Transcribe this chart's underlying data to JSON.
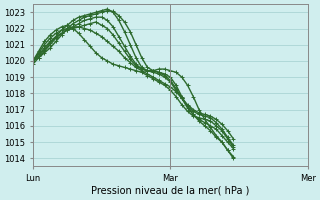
{
  "title": "",
  "xlabel": "Pression niveau de la mer( hPa )",
  "ylabel": "",
  "background_color": "#d0eeee",
  "grid_color": "#b0d8d8",
  "line_color": "#2d6a2d",
  "ylim": [
    1013.5,
    1023.5
  ],
  "yticks": [
    1014,
    1015,
    1016,
    1017,
    1018,
    1019,
    1020,
    1021,
    1022,
    1023
  ],
  "day_labels": [
    "Lun",
    "Mar",
    "Mer"
  ],
  "day_positions": [
    0,
    24,
    48
  ],
  "series": [
    [
      1020.0,
      1020.2,
      1020.5,
      1020.8,
      1021.2,
      1021.6,
      1022.0,
      1022.3,
      1022.5,
      1022.7,
      1022.8,
      1022.9,
      1023.0,
      1023.1,
      1023.05,
      1022.8,
      1022.4,
      1021.8,
      1021.0,
      1020.2,
      1019.6,
      1019.4,
      1019.5,
      1019.5,
      1019.4,
      1019.3,
      1019.0,
      1018.5,
      1017.8,
      1017.0,
      1016.4,
      1015.9,
      1015.4,
      1015.0,
      1014.5,
      1014.0
    ],
    [
      1020.0,
      1020.3,
      1020.7,
      1021.1,
      1021.5,
      1021.9,
      1022.2,
      1022.5,
      1022.7,
      1022.8,
      1022.9,
      1023.0,
      1023.1,
      1023.2,
      1023.0,
      1022.5,
      1021.8,
      1021.0,
      1020.2,
      1019.6,
      1019.4,
      1019.4,
      1019.3,
      1019.2,
      1019.0,
      1018.5,
      1017.8,
      1017.2,
      1016.7,
      1016.3,
      1016.0,
      1015.7,
      1015.3,
      1015.0,
      1014.5,
      1014.1
    ],
    [
      1019.8,
      1020.2,
      1020.6,
      1021.0,
      1021.4,
      1021.7,
      1021.9,
      1022.1,
      1022.3,
      1022.5,
      1022.6,
      1022.7,
      1022.7,
      1022.5,
      1022.1,
      1021.5,
      1020.9,
      1020.3,
      1019.8,
      1019.5,
      1019.4,
      1019.4,
      1019.3,
      1019.1,
      1018.8,
      1018.3,
      1017.7,
      1017.1,
      1016.7,
      1016.4,
      1016.2,
      1016.0,
      1015.8,
      1015.4,
      1015.0,
      1014.6
    ],
    [
      1020.0,
      1020.4,
      1020.8,
      1021.2,
      1021.5,
      1021.7,
      1021.9,
      1022.0,
      1022.1,
      1022.2,
      1022.3,
      1022.4,
      1022.2,
      1022.0,
      1021.6,
      1021.1,
      1020.6,
      1020.1,
      1019.7,
      1019.5,
      1019.4,
      1019.3,
      1019.2,
      1019.0,
      1018.7,
      1018.2,
      1017.7,
      1017.2,
      1016.9,
      1016.7,
      1016.6,
      1016.5,
      1016.2,
      1015.8,
      1015.3,
      1014.8
    ],
    [
      1020.0,
      1020.5,
      1021.0,
      1021.4,
      1021.7,
      1021.9,
      1022.0,
      1022.1,
      1022.1,
      1022.0,
      1021.9,
      1021.7,
      1021.5,
      1021.2,
      1020.9,
      1020.6,
      1020.2,
      1019.9,
      1019.6,
      1019.4,
      1019.2,
      1019.0,
      1018.8,
      1018.6,
      1018.4,
      1018.1,
      1017.7,
      1017.3,
      1017.0,
      1016.8,
      1016.7,
      1016.6,
      1016.4,
      1016.1,
      1015.7,
      1015.2
    ],
    [
      1020.0,
      1020.6,
      1021.2,
      1021.6,
      1021.9,
      1022.1,
      1022.2,
      1022.0,
      1021.7,
      1021.3,
      1020.9,
      1020.5,
      1020.2,
      1020.0,
      1019.8,
      1019.7,
      1019.6,
      1019.5,
      1019.4,
      1019.3,
      1019.1,
      1018.9,
      1018.7,
      1018.5,
      1018.2,
      1017.8,
      1017.3,
      1016.9,
      1016.6,
      1016.5,
      1016.4,
      1016.3,
      1016.0,
      1015.7,
      1015.2,
      1014.7
    ]
  ],
  "marker": "+",
  "markersize": 3,
  "linewidth": 1.0
}
